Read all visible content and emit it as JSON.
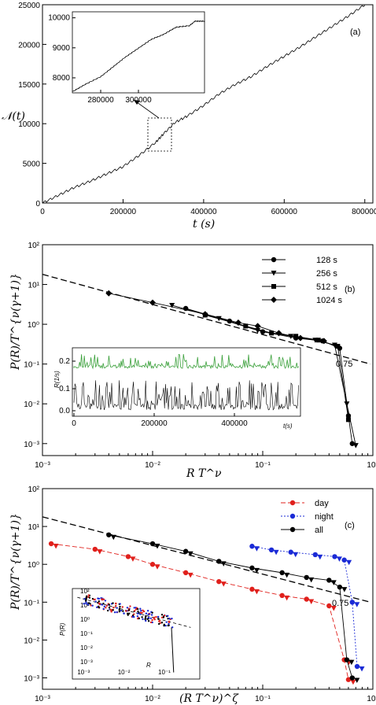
{
  "chart_data": [
    {
      "panel": "(a)",
      "type": "line",
      "xlabel": "t (s)",
      "ylabel": "𝒩(t)",
      "xlim": [
        0,
        820000
      ],
      "ylim": [
        0,
        25000
      ],
      "xticks": [
        "0",
        "200000",
        "400000",
        "600000",
        "800000"
      ],
      "yticks": [
        "0",
        "5000",
        "10000",
        "15000",
        "20000",
        "25000"
      ],
      "series": [
        {
          "values": [
            [
              0,
              0
            ],
            [
              40000,
              1000
            ],
            [
              80000,
              2000
            ],
            [
              120000,
              2800
            ],
            [
              160000,
              3700
            ],
            [
              200000,
              4600
            ],
            [
              240000,
              6000
            ],
            [
              280000,
              7600
            ],
            [
              300000,
              8700
            ],
            [
              330000,
              10200
            ],
            [
              360000,
              11000
            ],
            [
              400000,
              12300
            ],
            [
              440000,
              13800
            ],
            [
              480000,
              15000
            ],
            [
              520000,
              16000
            ],
            [
              560000,
              17300
            ],
            [
              600000,
              18500
            ],
            [
              640000,
              19700
            ],
            [
              680000,
              21000
            ],
            [
              720000,
              22300
            ],
            [
              760000,
              23600
            ],
            [
              800000,
              25000
            ]
          ]
        }
      ],
      "inset": {
        "xlim": [
          265000,
          335000
        ],
        "ylim": [
          7500,
          10200
        ],
        "xticks": [
          "280000",
          "300000"
        ],
        "yticks": [
          "8000",
          "9000",
          "10000"
        ],
        "values": [
          [
            265000,
            7550
          ],
          [
            272000,
            7800
          ],
          [
            280000,
            8050
          ],
          [
            287000,
            8400
          ],
          [
            293000,
            8700
          ],
          [
            300000,
            9000
          ],
          [
            307000,
            9300
          ],
          [
            313000,
            9450
          ],
          [
            320000,
            9700
          ],
          [
            327000,
            9750
          ],
          [
            330000,
            9900
          ],
          [
            335000,
            9900
          ]
        ]
      }
    },
    {
      "panel": "(b)",
      "type": "scatter",
      "xlabel": "R T^ν",
      "ylabel": "P(R)/T^{ν(γ+1)}",
      "xscale": "log",
      "yscale": "log",
      "xlim": [
        0.001,
        1
      ],
      "ylim": [
        0.0005,
        100
      ],
      "xticks": [
        "10⁻³",
        "10⁻²",
        "10⁻¹",
        "10⁰"
      ],
      "yticks": [
        "10²",
        "10¹",
        "10⁰",
        "10⁻¹",
        "10⁻²",
        "10⁻³"
      ],
      "annotation": "0.75",
      "legend": [
        "128 s",
        "256 s",
        "512 s",
        "1024 s"
      ],
      "series": [
        {
          "name": "128 s",
          "values": [
            [
              0.02,
              2.5
            ],
            [
              0.05,
              1.2
            ],
            [
              0.1,
              0.65
            ],
            [
              0.2,
              0.45
            ],
            [
              0.35,
              0.38
            ],
            [
              0.5,
              0.25
            ],
            [
              0.6,
              0.005
            ],
            [
              0.65,
              0.001
            ]
          ]
        },
        {
          "name": "256 s",
          "values": [
            [
              0.015,
              3.0
            ],
            [
              0.04,
              1.4
            ],
            [
              0.09,
              0.7
            ],
            [
              0.18,
              0.5
            ],
            [
              0.3,
              0.4
            ],
            [
              0.45,
              0.3
            ],
            [
              0.58,
              0.01
            ],
            [
              0.7,
              0.0009
            ]
          ]
        },
        {
          "name": "512 s",
          "values": [
            [
              0.03,
              1.7
            ],
            [
              0.07,
              0.9
            ],
            [
              0.12,
              0.6
            ],
            [
              0.2,
              0.5
            ],
            [
              0.32,
              0.4
            ],
            [
              0.48,
              0.28
            ],
            [
              0.6,
              0.004
            ]
          ]
        },
        {
          "name": "1024 s",
          "values": [
            [
              0.004,
              6.0
            ],
            [
              0.01,
              3.5
            ],
            [
              0.03,
              1.8
            ],
            [
              0.06,
              1.1
            ],
            [
              0.09,
              0.9
            ],
            [
              0.14,
              0.6
            ],
            [
              0.22,
              0.45
            ],
            [
              0.36,
              0.38
            ]
          ]
        }
      ],
      "inset": {
        "xlabel": "t(s)",
        "ylabel": "R(1/s)",
        "xticks": [
          "0",
          "200000",
          "400000"
        ],
        "yticks": [
          "0.0",
          "0.1",
          "0.2"
        ]
      }
    },
    {
      "panel": "(c)",
      "type": "scatter",
      "xlabel": "(R T^ν)^ζ",
      "ylabel": "P(R)/T^{ν(γ+1)}",
      "xscale": "log",
      "yscale": "log",
      "xlim": [
        0.001,
        1
      ],
      "ylim": [
        0.0005,
        100
      ],
      "xticks": [
        "10⁻³",
        "10⁻²",
        "10⁻¹",
        "10⁰"
      ],
      "yticks": [
        "10²",
        "10¹",
        "10⁰",
        "10⁻¹",
        "10⁻²",
        "10⁻³"
      ],
      "annotation": "0.75",
      "legend": [
        "day",
        "night",
        "all"
      ],
      "colors": {
        "day": "#e0201c",
        "night": "#1b2bd6",
        "all": "#000000"
      },
      "series": [
        {
          "name": "day",
          "values": [
            [
              0.0012,
              3.5
            ],
            [
              0.003,
              2.5
            ],
            [
              0.006,
              1.6
            ],
            [
              0.01,
              1.0
            ],
            [
              0.02,
              0.6
            ],
            [
              0.04,
              0.35
            ],
            [
              0.08,
              0.22
            ],
            [
              0.15,
              0.15
            ],
            [
              0.25,
              0.12
            ],
            [
              0.4,
              0.08
            ],
            [
              0.55,
              0.003
            ],
            [
              0.6,
              0.0009
            ]
          ]
        },
        {
          "name": "night",
          "values": [
            [
              0.08,
              3.0
            ],
            [
              0.12,
              2.4
            ],
            [
              0.18,
              2.1
            ],
            [
              0.3,
              1.8
            ],
            [
              0.45,
              1.6
            ],
            [
              0.55,
              1.3
            ],
            [
              0.65,
              0.1
            ],
            [
              0.72,
              0.002
            ]
          ]
        },
        {
          "name": "all",
          "values": [
            [
              0.004,
              6.0
            ],
            [
              0.01,
              3.5
            ],
            [
              0.02,
              2.2
            ],
            [
              0.04,
              1.2
            ],
            [
              0.08,
              0.8
            ],
            [
              0.15,
              0.6
            ],
            [
              0.25,
              0.45
            ],
            [
              0.4,
              0.38
            ],
            [
              0.5,
              0.25
            ],
            [
              0.58,
              0.003
            ],
            [
              0.65,
              0.001
            ]
          ]
        }
      ],
      "inset": {
        "xlabel": "R",
        "ylabel": "P(R)"
      }
    }
  ]
}
